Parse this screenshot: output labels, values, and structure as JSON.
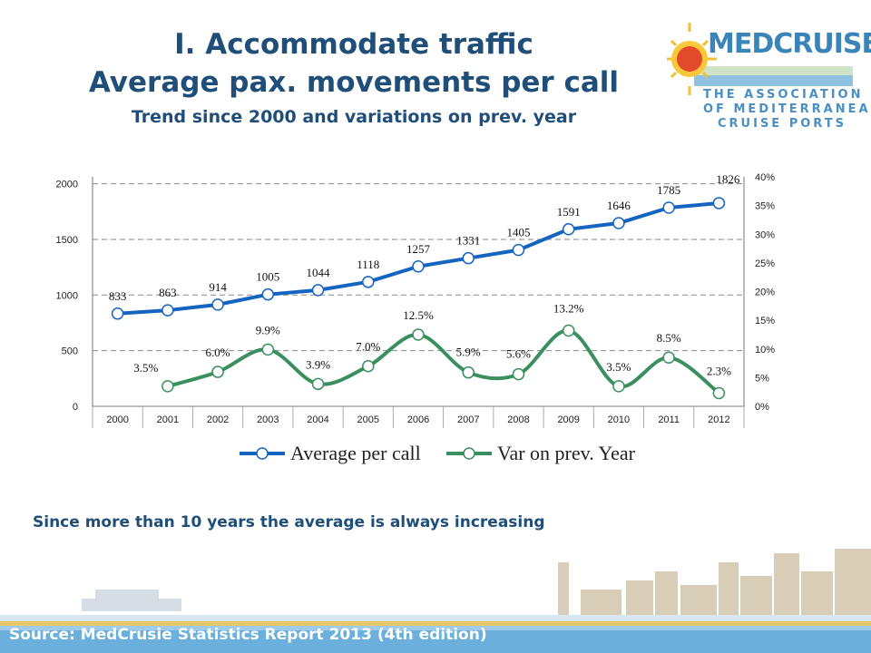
{
  "header": {
    "title_line1": "I. Accommodate traffic",
    "title_line2": "Average pax. movements per call",
    "title_line3": "Trend since 2000 and variations on prev. year"
  },
  "logo": {
    "name": "MEDCRUISE",
    "line1": "THE ASSOCIATION",
    "line2": "OF MEDITERRANEAN",
    "line3": "CRUISE PORTS"
  },
  "note": "Since more than 10 years the average is always increasing",
  "footer": {
    "source": "Source: MedCrusie Statistics Report 2013 (4th edition)"
  },
  "colors": {
    "title": "#1f4e79",
    "series_avg": "#1565c0",
    "series_var": "#3a8f5e",
    "footer_bar": "#6bb0dc"
  },
  "chart_data": {
    "type": "line",
    "categories": [
      "2000",
      "2001",
      "2002",
      "2003",
      "2004",
      "2005",
      "2006",
      "2007",
      "2008",
      "2009",
      "2010",
      "2011",
      "2012"
    ],
    "series": [
      {
        "name": "Average per call",
        "axis": "left",
        "values": [
          833,
          863,
          914,
          1005,
          1044,
          1118,
          1257,
          1331,
          1405,
          1591,
          1646,
          1785,
          1826
        ],
        "labels": [
          "833",
          "863",
          "914",
          "1005",
          "1044",
          "1118",
          "1257",
          "1331",
          "1405",
          "1591",
          "1646",
          "1785",
          "1826"
        ]
      },
      {
        "name": "Var on prev. Year",
        "axis": "right",
        "values": [
          null,
          3.5,
          6.0,
          9.9,
          3.9,
          7.0,
          12.5,
          5.9,
          5.6,
          13.2,
          3.5,
          8.5,
          2.3
        ],
        "labels": [
          "",
          "3.5%",
          "6.0%",
          "9.9%",
          "3.9%",
          "7.0%",
          "12.5%",
          "5.9%",
          "5.6%",
          "13.2%",
          "3.5%",
          "8.5%",
          "2.3%"
        ]
      }
    ],
    "y_left": {
      "min": 0,
      "max": 2000,
      "ticks": [
        "0",
        "500",
        "1000",
        "1500",
        "2000"
      ]
    },
    "y_right": {
      "min": 0,
      "max": 40,
      "ticks": [
        "0%",
        "5%",
        "10%",
        "15%",
        "20%",
        "25%",
        "30%",
        "35%",
        "40%"
      ]
    },
    "grid": "dashed horizontal",
    "legend_position": "bottom"
  }
}
